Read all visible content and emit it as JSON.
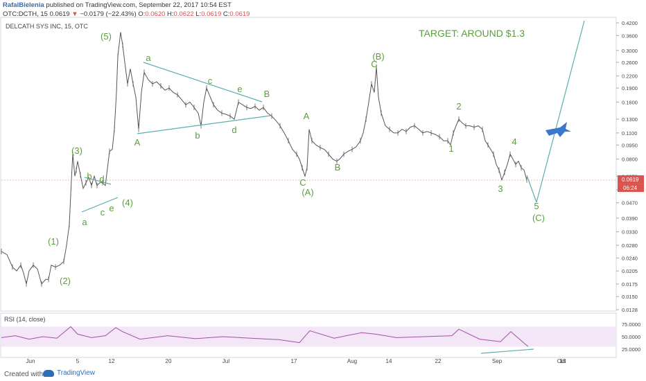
{
  "header": {
    "author": "RafalBielenia",
    "published": "published on TradingView.com, September 22, 2017 10:54 EST",
    "symbol_line": "OTC:DCTH, 15",
    "price": "0.0619",
    "change": "−0.0179 (−22.43%)",
    "o_label": "O:",
    "o_value": "0.0620",
    "h_label": "H:",
    "h_value": "0.0622",
    "l_label": "L:",
    "l_value": "0.0619",
    "c_label": "C:",
    "c_value": "0.0619"
  },
  "footer": {
    "made_with": "Created with",
    "brand": "TradingView"
  },
  "colors": {
    "wave": "#5a9e3a",
    "line": "#5aaeae",
    "candle": "#555555",
    "rsi": "#a34ea8",
    "rsi_band": "#f3e6f7",
    "price_box": "#d9534f",
    "plane": "#3a78c9"
  },
  "chart_data": [
    {
      "type": "line",
      "title": "DELCATH SYS INC, 15, OTC",
      "annotation": "TARGET: AROUND $1.3",
      "price_label": "0.0619",
      "countdown_label": "06:24",
      "yscale": "log",
      "y_ticks": [
        "0.4200",
        "0.3600",
        "0.3000",
        "0.2600",
        "0.2200",
        "0.1900",
        "0.1600",
        "0.1300",
        "0.1100",
        "0.0950",
        "0.0800",
        "0.0650",
        "0.0550",
        "0.0470",
        "0.0390",
        "0.0330",
        "0.0280",
        "0.0240",
        "0.0205",
        "0.0175",
        "0.0150",
        "0.0128"
      ],
      "x_ticks": [
        "Jun",
        "5",
        "12",
        "20",
        "Jul",
        "17",
        "Aug",
        "14",
        "22",
        "Sep",
        "18",
        "Oct"
      ],
      "series": [
        {
          "values": [
            [
              0,
              0.026
            ],
            [
              8,
              0.025
            ],
            [
              16,
              0.0215
            ],
            [
              22,
              0.0205
            ],
            [
              28,
              0.022
            ],
            [
              32,
              0.02
            ],
            [
              36,
              0.0175
            ],
            [
              40,
              0.0205
            ],
            [
              46,
              0.022
            ],
            [
              52,
              0.021
            ],
            [
              58,
              0.0175
            ],
            [
              64,
              0.0185
            ],
            [
              68,
              0.0185
            ],
            [
              72,
              0.022
            ],
            [
              78,
              0.0215
            ],
            [
              84,
              0.022
            ],
            [
              90,
              0.023
            ],
            [
              94,
              0.028
            ],
            [
              98,
              0.036
            ],
            [
              101,
              0.062
            ],
            [
              103,
              0.085
            ],
            [
              106,
              0.065
            ],
            [
              108,
              0.07
            ],
            [
              110,
              0.078
            ],
            [
              114,
              0.066
            ],
            [
              118,
              0.056
            ],
            [
              122,
              0.06
            ],
            [
              126,
              0.064
            ],
            [
              130,
              0.058
            ],
            [
              134,
              0.065
            ],
            [
              138,
              0.058
            ],
            [
              142,
              0.06
            ],
            [
              146,
              0.06
            ],
            [
              150,
              0.058
            ],
            [
              156,
              0.088
            ],
            [
              160,
              0.09
            ],
            [
              163,
              0.115
            ],
            [
              166,
              0.18
            ],
            [
              168,
              0.28
            ],
            [
              172,
              0.375
            ],
            [
              175,
              0.32
            ],
            [
              178,
              0.26
            ],
            [
              182,
              0.2
            ],
            [
              186,
              0.24
            ],
            [
              190,
              0.2
            ],
            [
              194,
              0.17
            ],
            [
              198,
              0.115
            ],
            [
              202,
              0.18
            ],
            [
              206,
              0.23
            ],
            [
              212,
              0.21
            ],
            [
              218,
              0.2
            ],
            [
              224,
              0.205
            ],
            [
              230,
              0.195
            ],
            [
              236,
              0.185
            ],
            [
              242,
              0.19
            ],
            [
              248,
              0.18
            ],
            [
              254,
              0.175
            ],
            [
              260,
              0.165
            ],
            [
              266,
              0.155
            ],
            [
              272,
              0.16
            ],
            [
              278,
              0.15
            ],
            [
              284,
              0.14
            ],
            [
              288,
              0.12
            ],
            [
              292,
              0.16
            ],
            [
              296,
              0.19
            ],
            [
              300,
              0.175
            ],
            [
              306,
              0.155
            ],
            [
              312,
              0.145
            ],
            [
              318,
              0.14
            ],
            [
              324,
              0.138
            ],
            [
              330,
              0.135
            ],
            [
              336,
              0.13
            ],
            [
              342,
              0.16
            ],
            [
              348,
              0.155
            ],
            [
              354,
              0.15
            ],
            [
              360,
              0.148
            ],
            [
              366,
              0.152
            ],
            [
              372,
              0.145
            ],
            [
              378,
              0.15
            ],
            [
              384,
              0.14
            ],
            [
              390,
              0.135
            ],
            [
              396,
              0.128
            ],
            [
              402,
              0.12
            ],
            [
              408,
              0.11
            ],
            [
              414,
              0.1
            ],
            [
              420,
              0.09
            ],
            [
              426,
              0.085
            ],
            [
              430,
              0.08
            ],
            [
              434,
              0.072
            ],
            [
              438,
              0.065
            ],
            [
              441,
              0.072
            ],
            [
              444,
              0.115
            ],
            [
              448,
              0.1
            ],
            [
              454,
              0.095
            ],
            [
              460,
              0.092
            ],
            [
              466,
              0.09
            ],
            [
              472,
              0.085
            ],
            [
              478,
              0.08
            ],
            [
              484,
              0.078
            ],
            [
              488,
              0.08
            ],
            [
              494,
              0.085
            ],
            [
              500,
              0.088
            ],
            [
              506,
              0.09
            ],
            [
              512,
              0.093
            ],
            [
              518,
              0.1
            ],
            [
              522,
              0.11
            ],
            [
              526,
              0.13
            ],
            [
              530,
              0.16
            ],
            [
              534,
              0.2
            ],
            [
              538,
              0.18
            ],
            [
              541,
              0.245
            ],
            [
              544,
              0.17
            ],
            [
              548,
              0.14
            ],
            [
              554,
              0.12
            ],
            [
              560,
              0.115
            ],
            [
              566,
              0.11
            ],
            [
              572,
              0.11
            ],
            [
              578,
              0.115
            ],
            [
              584,
              0.112
            ],
            [
              590,
              0.118
            ],
            [
              596,
              0.12
            ],
            [
              602,
              0.115
            ],
            [
              608,
              0.11
            ],
            [
              614,
              0.112
            ],
            [
              620,
              0.11
            ],
            [
              626,
              0.108
            ],
            [
              632,
              0.105
            ],
            [
              638,
              0.1
            ],
            [
              644,
              0.1
            ],
            [
              648,
              0.095
            ],
            [
              652,
              0.11
            ],
            [
              656,
              0.12
            ],
            [
              660,
              0.13
            ],
            [
              664,
              0.125
            ],
            [
              670,
              0.12
            ],
            [
              676,
              0.12
            ],
            [
              682,
              0.118
            ],
            [
              688,
              0.12
            ],
            [
              694,
              0.115
            ],
            [
              698,
              0.1
            ],
            [
              702,
              0.095
            ],
            [
              706,
              0.09
            ],
            [
              710,
              0.085
            ],
            [
              714,
              0.075
            ],
            [
              718,
              0.07
            ],
            [
              722,
              0.062
            ],
            [
              726,
              0.068
            ],
            [
              730,
              0.075
            ],
            [
              734,
              0.085
            ],
            [
              738,
              0.08
            ],
            [
              742,
              0.075
            ],
            [
              746,
              0.078
            ],
            [
              750,
              0.072
            ],
            [
              754,
              0.07
            ],
            [
              758,
              0.062
            ]
          ]
        },
        {
          "values": [
            [
              0,
              48
            ],
            [
              20,
              52
            ],
            [
              40,
              45
            ],
            [
              60,
              50
            ],
            [
              80,
              47
            ],
            [
              100,
              70
            ],
            [
              110,
              55
            ],
            [
              130,
              48
            ],
            [
              150,
              52
            ],
            [
              165,
              68
            ],
            [
              175,
              60
            ],
            [
              200,
              45
            ],
            [
              240,
              52
            ],
            [
              280,
              46
            ],
            [
              320,
              50
            ],
            [
              360,
              47
            ],
            [
              400,
              44
            ],
            [
              430,
              38
            ],
            [
              445,
              62
            ],
            [
              480,
              47
            ],
            [
              520,
              58
            ],
            [
              540,
              55
            ],
            [
              570,
              48
            ],
            [
              610,
              50
            ],
            [
              650,
              52
            ],
            [
              660,
              65
            ],
            [
              690,
              45
            ],
            [
              720,
              40
            ],
            [
              735,
              60
            ],
            [
              750,
              42
            ],
            [
              760,
              30
            ]
          ]
        }
      ],
      "rsi_title": "RSI (14, close)",
      "rsi_ticks": [
        "75.0000",
        "50.0000",
        "25.0000"
      ],
      "wave_labels": [
        "(5)",
        "a",
        "c",
        "e",
        "B",
        "A",
        "b",
        "d",
        "(3)",
        "b",
        "d",
        "(4)",
        "a",
        "c",
        "e",
        "(1)",
        "(2)",
        "A",
        "B",
        "C",
        "(A)",
        "(B)",
        "C",
        "1",
        "2",
        "3",
        "4",
        "5",
        "(C)"
      ]
    }
  ]
}
